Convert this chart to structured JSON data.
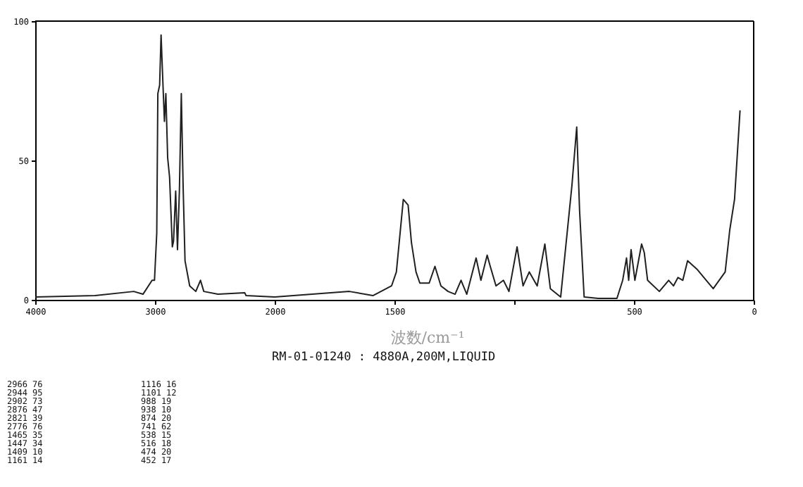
{
  "chart_data": [
    {
      "type": "line",
      "x": [
        4000,
        3500,
        3177,
        3100,
        3024,
        3004,
        2985,
        2976,
        2961,
        2949,
        2933,
        2921,
        2909,
        2894,
        2878,
        2855,
        2845,
        2827,
        2812,
        2796,
        2780,
        2765,
        2749,
        2710,
        2659,
        2620,
        2592,
        2474,
        2250,
        2239,
        2000
      ],
      "values": [
        1,
        1.5,
        3,
        2,
        7,
        7,
        24,
        74,
        77,
        95,
        77,
        64,
        74,
        51,
        44,
        19,
        21,
        39,
        18,
        39,
        74,
        41,
        14,
        5,
        3,
        7,
        3,
        2,
        2.5,
        1.5,
        1
      ],
      "color": "#202020",
      "xlim": [
        4000,
        2000
      ],
      "xticks": [
        4000,
        3000,
        2000
      ],
      "ylim": [
        0,
        100
      ],
      "yticks": [
        0,
        50,
        100
      ],
      "grid": false
    },
    {
      "type": "line",
      "xlabel": "波数/cm⁻¹",
      "x": [
        2000,
        1688,
        1590,
        1512,
        1492,
        1463,
        1443,
        1429,
        1410,
        1394,
        1355,
        1331,
        1306,
        1276,
        1247,
        1222,
        1198,
        1159,
        1139,
        1113,
        1100,
        1076,
        1045,
        1022,
        988,
        963,
        937,
        904,
        872,
        849,
        806,
        759,
        739,
        727,
        708,
        649,
        571,
        547,
        531,
        522,
        512,
        496,
        468,
        457,
        443,
        394,
        355,
        335,
        316,
        296,
        276,
        237,
        198,
        169,
        119,
        100,
        80,
        57
      ],
      "values": [
        1,
        3,
        1.5,
        5,
        10,
        36,
        34,
        20.5,
        10,
        6,
        6,
        12,
        5,
        3,
        2,
        7,
        2,
        15,
        7,
        16,
        12,
        5,
        7,
        3,
        19,
        5,
        10,
        5,
        20,
        4,
        1,
        41,
        62,
        32,
        1,
        0.5,
        0.5,
        7,
        15,
        7,
        18,
        7,
        20,
        17,
        7,
        3,
        7,
        5,
        8,
        7,
        14,
        11,
        7,
        4,
        10,
        25,
        36,
        68
      ],
      "color": "#202020",
      "xlim": [
        2000,
        0
      ],
      "xticks": [
        {
          "value": 2000,
          "label": null
        },
        1500,
        {
          "value": 1000,
          "label": null
        },
        500,
        0
      ],
      "ylim": [
        0,
        100
      ],
      "tick_labels": "x",
      "grid": false,
      "annotations": [
        "RM-01-01240 : 4880A,200M,LIQUID",
        "2966   76",
        "2944   95",
        "2902   73",
        "2876   47",
        "2821   39",
        "2776   76",
        "1465   35",
        "1447   34",
        "1409   10",
        "1161   14",
        "1116   16",
        "1101   12",
        " 988   19",
        " 938   10",
        " 874   20",
        " 741   62",
        " 538   15",
        " 516   18",
        " 474   20",
        " 452   17"
      ]
    }
  ]
}
